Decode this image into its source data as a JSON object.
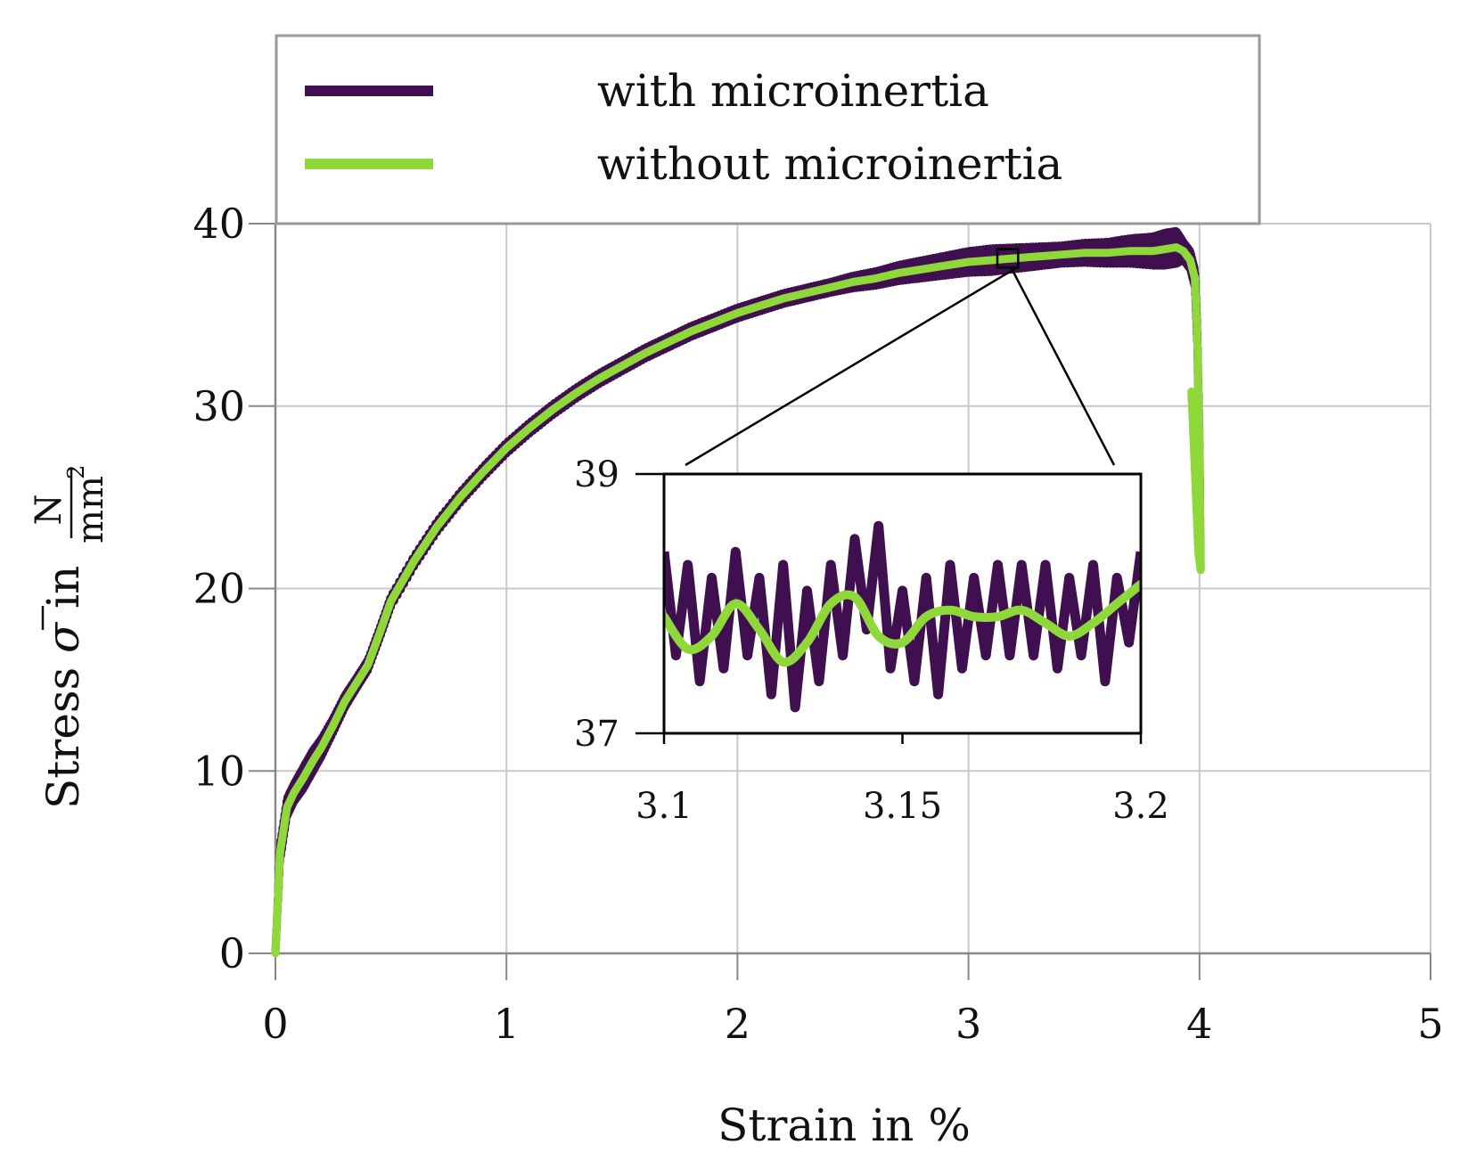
{
  "chart_data": {
    "type": "line",
    "xlabel": "Strain in %",
    "ylabel": {
      "prefix": "Stress ",
      "symbol": "σ",
      "in": " in ",
      "unit_num": "N",
      "unit_den": "mm",
      "unit_exp": "2"
    },
    "xlim": [
      0,
      5
    ],
    "ylim": [
      0,
      40
    ],
    "xticks": [
      "0",
      "1",
      "2",
      "3",
      "4",
      "5"
    ],
    "yticks": [
      "0",
      "10",
      "20",
      "30",
      "40"
    ],
    "grid": true,
    "legend": {
      "position": "top",
      "entries": [
        {
          "label": "with microinertia",
          "color": "#3f0f4f"
        },
        {
          "label": "without microinertia",
          "color": "#8fd83a"
        }
      ]
    },
    "series": [
      {
        "name": "with microinertia",
        "color": "#3f0f4f",
        "envelope": true,
        "x": [
          0,
          0.02,
          0.05,
          0.08,
          0.12,
          0.16,
          0.2,
          0.25,
          0.3,
          0.35,
          0.4,
          0.45,
          0.5,
          0.6,
          0.7,
          0.8,
          0.9,
          1.0,
          1.1,
          1.2,
          1.3,
          1.4,
          1.5,
          1.6,
          1.7,
          1.8,
          1.9,
          2.0,
          2.1,
          2.2,
          2.3,
          2.4,
          2.5,
          2.6,
          2.7,
          2.8,
          2.9,
          3.0,
          3.1,
          3.2,
          3.3,
          3.4,
          3.5,
          3.6,
          3.7,
          3.8,
          3.85,
          3.9,
          3.93,
          3.96,
          3.98,
          3.99,
          4.0,
          4.005
        ],
        "y": [
          0,
          5.5,
          8.0,
          8.8,
          9.6,
          10.5,
          11.3,
          12.5,
          13.8,
          14.8,
          15.8,
          17.5,
          19.3,
          21.5,
          23.4,
          25.0,
          26.4,
          27.7,
          28.8,
          29.8,
          30.7,
          31.5,
          32.2,
          32.9,
          33.5,
          34.1,
          34.6,
          35.1,
          35.5,
          35.9,
          36.2,
          36.5,
          36.8,
          37.0,
          37.3,
          37.5,
          37.7,
          37.9,
          38.0,
          38.1,
          38.2,
          38.3,
          38.4,
          38.4,
          38.5,
          38.5,
          38.6,
          38.7,
          38.5,
          38.0,
          37.0,
          34.0,
          28.0,
          21.0
        ],
        "noise": [
          0,
          0.5,
          0.5,
          0.5,
          0.6,
          0.6,
          0.5,
          0.4,
          0.35,
          0.3,
          0.3,
          0.3,
          0.3,
          0.3,
          0.3,
          0.3,
          0.3,
          0.3,
          0.3,
          0.3,
          0.3,
          0.3,
          0.3,
          0.3,
          0.3,
          0.3,
          0.3,
          0.3,
          0.3,
          0.3,
          0.3,
          0.3,
          0.35,
          0.4,
          0.45,
          0.5,
          0.55,
          0.6,
          0.65,
          0.6,
          0.55,
          0.5,
          0.55,
          0.6,
          0.7,
          0.8,
          0.9,
          0.9,
          0.5,
          0.5,
          0.5,
          0.5,
          0.5,
          0.5
        ]
      },
      {
        "name": "without microinertia",
        "color": "#8fd83a",
        "x": [
          0,
          0.02,
          0.05,
          0.08,
          0.12,
          0.16,
          0.2,
          0.25,
          0.3,
          0.35,
          0.4,
          0.45,
          0.5,
          0.6,
          0.7,
          0.8,
          0.9,
          1.0,
          1.1,
          1.2,
          1.3,
          1.4,
          1.5,
          1.6,
          1.7,
          1.8,
          1.9,
          2.0,
          2.1,
          2.2,
          2.3,
          2.4,
          2.5,
          2.6,
          2.7,
          2.8,
          2.9,
          3.0,
          3.1,
          3.2,
          3.3,
          3.4,
          3.5,
          3.6,
          3.7,
          3.8,
          3.85,
          3.9,
          3.93,
          3.96,
          3.98,
          3.99,
          4.0,
          4.005,
          3.995,
          3.985,
          3.975,
          3.965
        ],
        "y": [
          0,
          5.5,
          8.0,
          8.8,
          9.6,
          10.5,
          11.3,
          12.5,
          13.8,
          14.8,
          15.8,
          17.5,
          19.3,
          21.5,
          23.4,
          25.0,
          26.4,
          27.7,
          28.8,
          29.8,
          30.7,
          31.5,
          32.2,
          32.9,
          33.5,
          34.1,
          34.6,
          35.1,
          35.5,
          35.9,
          36.2,
          36.5,
          36.8,
          37.0,
          37.3,
          37.5,
          37.7,
          37.9,
          38.0,
          38.1,
          38.2,
          38.3,
          38.4,
          38.4,
          38.5,
          38.5,
          38.6,
          38.7,
          38.5,
          38.0,
          37.0,
          34.0,
          28.0,
          21.0,
          22.0,
          25.0,
          28.0,
          30.8
        ]
      }
    ],
    "inset": {
      "xlim": [
        3.1,
        3.2
      ],
      "ylim": [
        37,
        39
      ],
      "xticks": [
        "3.1",
        "3.15",
        "3.2"
      ],
      "yticks": [
        "37",
        "39"
      ],
      "zoom_region": {
        "x": [
          3.14,
          3.17
        ],
        "y": [
          37.6,
          38.2
        ]
      },
      "series": [
        {
          "name": "with microinertia",
          "color": "#3f0f4f",
          "x": [
            3.1,
            3.1025,
            3.105,
            3.1075,
            3.11,
            3.1125,
            3.115,
            3.1175,
            3.12,
            3.1225,
            3.125,
            3.1275,
            3.13,
            3.1325,
            3.135,
            3.1375,
            3.14,
            3.1425,
            3.145,
            3.1475,
            3.15,
            3.1525,
            3.155,
            3.1575,
            3.16,
            3.1625,
            3.165,
            3.1675,
            3.17,
            3.1725,
            3.175,
            3.1775,
            3.18,
            3.1825,
            3.185,
            3.1875,
            3.19,
            3.1925,
            3.195,
            3.1975,
            3.2
          ],
          "y": [
            38.4,
            37.6,
            38.3,
            37.4,
            38.2,
            37.5,
            38.4,
            37.6,
            38.2,
            37.3,
            38.3,
            37.2,
            38.1,
            37.4,
            38.3,
            37.6,
            38.5,
            37.8,
            38.6,
            37.5,
            38.1,
            37.4,
            38.2,
            37.3,
            38.3,
            37.5,
            38.2,
            37.6,
            38.3,
            37.6,
            38.3,
            37.6,
            38.3,
            37.5,
            38.2,
            37.6,
            38.3,
            37.4,
            38.2,
            37.7,
            38.4
          ],
          "values_note": "oscillation extremes"
        },
        {
          "name": "without microinertia",
          "color": "#8fd83a",
          "x": [
            3.1,
            3.105,
            3.11,
            3.115,
            3.12,
            3.125,
            3.13,
            3.135,
            3.14,
            3.145,
            3.15,
            3.155,
            3.16,
            3.165,
            3.17,
            3.175,
            3.18,
            3.185,
            3.19,
            3.195,
            3.2
          ],
          "y": [
            37.9,
            37.65,
            37.75,
            38.0,
            37.8,
            37.55,
            37.7,
            38.0,
            38.05,
            37.75,
            37.7,
            37.9,
            37.95,
            37.9,
            37.9,
            37.95,
            37.85,
            37.75,
            37.85,
            38.0,
            38.15
          ]
        }
      ]
    }
  }
}
